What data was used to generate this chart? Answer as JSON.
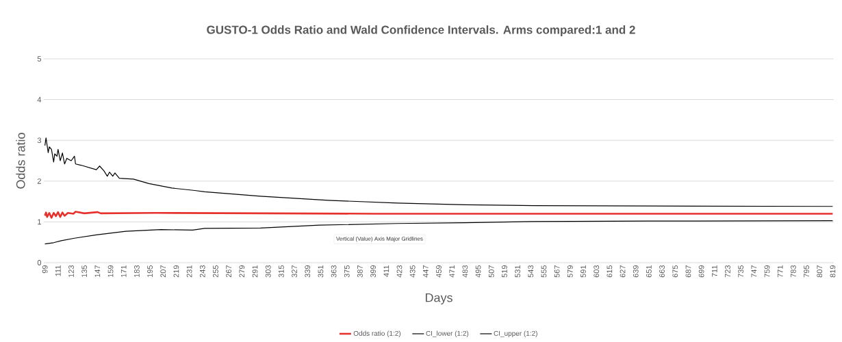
{
  "chart_data": {
    "type": "line",
    "title": "GUSTO-1 Odds Ratio and Wald Confidence Intervals. Arms compared:1 and 2",
    "xlabel": "Days",
    "ylabel": "Odds ratio",
    "xlim": [
      98,
      820
    ],
    "ylim": [
      0,
      5
    ],
    "xticks": [
      99,
      111,
      123,
      135,
      147,
      159,
      171,
      183,
      195,
      207,
      219,
      231,
      243,
      255,
      267,
      279,
      291,
      303,
      315,
      327,
      339,
      351,
      363,
      375,
      387,
      399,
      411,
      423,
      435,
      447,
      459,
      471,
      483,
      495,
      507,
      519,
      531,
      543,
      555,
      567,
      579,
      591,
      603,
      615,
      627,
      639,
      651,
      663,
      675,
      687,
      699,
      711,
      723,
      735,
      747,
      759,
      771,
      783,
      795,
      807,
      819
    ],
    "yticks": [
      0,
      1,
      2,
      3,
      4,
      5
    ],
    "grid": "y",
    "legend": "bottom",
    "marker": "none",
    "line_style": "solid",
    "annotations": [
      "Vertical (Value) Axis Major Gridlines"
    ],
    "series": [
      {
        "name": "Odds ratio (1:2)",
        "color": "#e5322d",
        "x": [
          99,
          100,
          101,
          103,
          105,
          107,
          109,
          111,
          113,
          115,
          117,
          120,
          125,
          127,
          135,
          147,
          150,
          200,
          300,
          400,
          819
        ],
        "values": [
          1.15,
          1.23,
          1.12,
          1.22,
          1.1,
          1.22,
          1.14,
          1.24,
          1.12,
          1.23,
          1.15,
          1.22,
          1.2,
          1.25,
          1.21,
          1.24,
          1.21,
          1.22,
          1.21,
          1.2,
          1.2
        ]
      },
      {
        "name": "CI_lower (1:2)",
        "color": "#000000",
        "x": [
          99,
          107,
          114,
          126,
          146,
          173,
          205,
          234,
          245,
          296,
          350,
          421,
          483,
          546,
          650,
          819
        ],
        "values": [
          0.46,
          0.49,
          0.54,
          0.6,
          0.68,
          0.77,
          0.81,
          0.8,
          0.84,
          0.85,
          0.92,
          0.96,
          0.98,
          1.01,
          1.02,
          1.03
        ]
      },
      {
        "name": "CI_upper (1:2)",
        "color": "#000000",
        "x": [
          99,
          100,
          102,
          103,
          105,
          107,
          108,
          110,
          111,
          113,
          115,
          117,
          119,
          123,
          126,
          127,
          132,
          146,
          149,
          153,
          156,
          158,
          161,
          163,
          167,
          180,
          194,
          215,
          236,
          245,
          296,
          358,
          421,
          483,
          546,
          650,
          819
        ],
        "values": [
          2.87,
          3.06,
          2.7,
          2.84,
          2.78,
          2.47,
          2.67,
          2.61,
          2.78,
          2.5,
          2.69,
          2.42,
          2.56,
          2.5,
          2.61,
          2.42,
          2.39,
          2.28,
          2.37,
          2.25,
          2.12,
          2.22,
          2.12,
          2.2,
          2.07,
          2.05,
          1.94,
          1.83,
          1.77,
          1.74,
          1.63,
          1.53,
          1.46,
          1.42,
          1.4,
          1.39,
          1.38
        ]
      }
    ]
  }
}
